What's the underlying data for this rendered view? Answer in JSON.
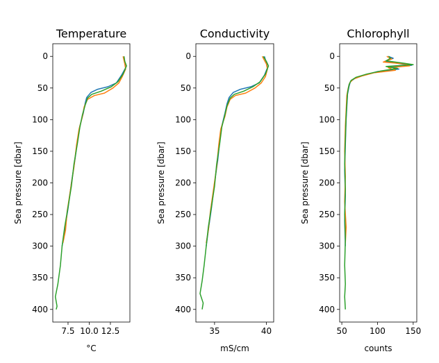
{
  "chart_data": [
    {
      "type": "line",
      "title": "Temperature",
      "xlabel": "°C",
      "ylabel": "Sea pressure [dbar]",
      "xlim": [
        5.7,
        14.8
      ],
      "ylim": [
        420,
        -20
      ],
      "y_inverted": true,
      "xticks": [
        7.5,
        10.0,
        12.5
      ],
      "xtick_labels": [
        "7.5",
        "10.0",
        "12.5"
      ],
      "yticks": [
        0,
        50,
        100,
        150,
        200,
        250,
        300,
        350,
        400
      ],
      "grid": false,
      "series": [
        {
          "color": "#1f77b4",
          "points": [
            [
              14.1,
              0
            ],
            [
              14.2,
              10
            ],
            [
              14.3,
              18
            ],
            [
              13.8,
              30
            ],
            [
              13.2,
              42
            ],
            [
              12.2,
              48
            ],
            [
              11.0,
              52
            ],
            [
              10.2,
              57
            ],
            [
              9.7,
              65
            ],
            [
              9.5,
              75
            ],
            [
              9.3,
              90
            ],
            [
              8.9,
              110
            ],
            [
              8.6,
              135
            ],
            [
              8.3,
              165
            ],
            [
              7.9,
              200
            ],
            [
              7.5,
              240
            ],
            [
              7.1,
              275
            ],
            [
              6.8,
              300
            ]
          ]
        },
        {
          "color": "#ff7f0e",
          "points": [
            [
              14.0,
              0
            ],
            [
              14.2,
              12
            ],
            [
              14.3,
              20
            ],
            [
              13.9,
              32
            ],
            [
              13.5,
              42
            ],
            [
              12.8,
              50
            ],
            [
              11.8,
              58
            ],
            [
              10.6,
              62
            ],
            [
              9.8,
              68
            ],
            [
              9.4,
              80
            ],
            [
              9.2,
              95
            ],
            [
              8.8,
              115
            ],
            [
              8.5,
              140
            ],
            [
              8.2,
              175
            ],
            [
              7.8,
              210
            ],
            [
              7.4,
              245
            ],
            [
              7.2,
              275
            ],
            [
              6.9,
              295
            ]
          ]
        },
        {
          "color": "#2ca02c",
          "points": [
            [
              14.1,
              0
            ],
            [
              14.2,
              8
            ],
            [
              14.4,
              15
            ],
            [
              14.0,
              28
            ],
            [
              13.4,
              40
            ],
            [
              12.6,
              48
            ],
            [
              11.4,
              55
            ],
            [
              10.3,
              60
            ],
            [
              9.8,
              66
            ],
            [
              9.5,
              78
            ],
            [
              9.2,
              92
            ],
            [
              8.9,
              112
            ],
            [
              8.6,
              138
            ],
            [
              8.2,
              170
            ],
            [
              7.9,
              205
            ],
            [
              7.5,
              238
            ],
            [
              7.1,
              270
            ],
            [
              6.8,
              300
            ],
            [
              6.6,
              330
            ],
            [
              6.3,
              360
            ],
            [
              6.0,
              380
            ],
            [
              6.2,
              395
            ],
            [
              6.1,
              400
            ]
          ]
        }
      ]
    },
    {
      "type": "line",
      "title": "Conductivity",
      "xlabel": "mS/cm",
      "ylabel": "Sea pressure [dbar]",
      "xlim": [
        33.2,
        40.7
      ],
      "ylim": [
        420,
        -20
      ],
      "y_inverted": true,
      "xticks": [
        35,
        40
      ],
      "xtick_labels": [
        "35",
        "40"
      ],
      "yticks": [
        0,
        50,
        100,
        150,
        200,
        250,
        300,
        350,
        400
      ],
      "grid": false,
      "series": [
        {
          "color": "#1f77b4",
          "points": [
            [
              39.8,
              0
            ],
            [
              40.0,
              10
            ],
            [
              40.1,
              18
            ],
            [
              39.8,
              30
            ],
            [
              39.3,
              42
            ],
            [
              38.5,
              48
            ],
            [
              37.5,
              52
            ],
            [
              36.8,
              57
            ],
            [
              36.4,
              65
            ],
            [
              36.2,
              75
            ],
            [
              36.0,
              90
            ],
            [
              35.7,
              110
            ],
            [
              35.5,
              135
            ],
            [
              35.3,
              165
            ],
            [
              35.0,
              200
            ],
            [
              34.7,
              240
            ],
            [
              34.4,
              275
            ],
            [
              34.2,
              300
            ]
          ]
        },
        {
          "color": "#ff7f0e",
          "points": [
            [
              39.6,
              0
            ],
            [
              40.0,
              12
            ],
            [
              40.1,
              20
            ],
            [
              39.9,
              32
            ],
            [
              39.5,
              42
            ],
            [
              38.9,
              50
            ],
            [
              38.0,
              58
            ],
            [
              37.0,
              62
            ],
            [
              36.5,
              68
            ],
            [
              36.2,
              80
            ],
            [
              36.0,
              95
            ],
            [
              35.6,
              115
            ],
            [
              35.4,
              140
            ],
            [
              35.2,
              175
            ],
            [
              34.9,
              210
            ],
            [
              34.6,
              245
            ],
            [
              34.4,
              275
            ],
            [
              34.2,
              295
            ]
          ]
        },
        {
          "color": "#2ca02c",
          "points": [
            [
              39.7,
              0
            ],
            [
              40.0,
              8
            ],
            [
              40.2,
              15
            ],
            [
              39.9,
              28
            ],
            [
              39.4,
              40
            ],
            [
              38.7,
              48
            ],
            [
              37.8,
              55
            ],
            [
              36.9,
              60
            ],
            [
              36.5,
              66
            ],
            [
              36.2,
              78
            ],
            [
              36.0,
              92
            ],
            [
              35.7,
              112
            ],
            [
              35.5,
              138
            ],
            [
              35.2,
              170
            ],
            [
              35.0,
              205
            ],
            [
              34.7,
              238
            ],
            [
              34.4,
              270
            ],
            [
              34.2,
              300
            ],
            [
              34.0,
              330
            ],
            [
              33.8,
              355
            ],
            [
              33.6,
              375
            ],
            [
              33.9,
              390
            ],
            [
              33.8,
              400
            ]
          ]
        }
      ]
    },
    {
      "type": "line",
      "title": "Chlorophyll",
      "xlabel": "counts",
      "ylabel": "Sea pressure [dbar]",
      "xlim": [
        47,
        155
      ],
      "ylim": [
        420,
        -20
      ],
      "y_inverted": true,
      "xticks": [
        50,
        100,
        150
      ],
      "xtick_labels": [
        "50",
        "100",
        "150"
      ],
      "yticks": [
        0,
        50,
        100,
        150,
        200,
        250,
        300,
        350,
        400
      ],
      "grid": false,
      "series": [
        {
          "color": "#1f77b4",
          "points": [
            [
              115,
              0
            ],
            [
              122,
              3
            ],
            [
              110,
              8
            ],
            [
              135,
              12
            ],
            [
              148,
              14
            ],
            [
              118,
              17
            ],
            [
              130,
              20
            ],
            [
              100,
              24
            ],
            [
              80,
              30
            ],
            [
              68,
              35
            ],
            [
              62,
              40
            ],
            [
              60,
              48
            ],
            [
              58,
              60
            ],
            [
              57,
              80
            ],
            [
              56,
              100
            ],
            [
              55,
              140
            ],
            [
              54,
              180
            ],
            [
              55,
              220
            ],
            [
              54,
              260
            ],
            [
              55,
              300
            ]
          ]
        },
        {
          "color": "#ff7f0e",
          "points": [
            [
              113,
              0
            ],
            [
              120,
              4
            ],
            [
              108,
              9
            ],
            [
              140,
              12
            ],
            [
              145,
              15
            ],
            [
              115,
              18
            ],
            [
              125,
              22
            ],
            [
              95,
              26
            ],
            [
              78,
              31
            ],
            [
              66,
              36
            ],
            [
              61,
              42
            ],
            [
              59,
              50
            ],
            [
              57,
              62
            ],
            [
              56,
              85
            ],
            [
              55,
              110
            ],
            [
              54,
              150
            ],
            [
              55,
              190
            ],
            [
              54,
              230
            ],
            [
              56,
              270
            ],
            [
              55,
              295
            ]
          ]
        },
        {
          "color": "#2ca02c",
          "points": [
            [
              116,
              0
            ],
            [
              118,
              3
            ],
            [
              112,
              7
            ],
            [
              138,
              11
            ],
            [
              150,
              13
            ],
            [
              112,
              16
            ],
            [
              128,
              19
            ],
            [
              105,
              23
            ],
            [
              85,
              28
            ],
            [
              70,
              33
            ],
            [
              63,
              38
            ],
            [
              60,
              45
            ],
            [
              58,
              58
            ],
            [
              57,
              75
            ],
            [
              56,
              95
            ],
            [
              55,
              130
            ],
            [
              54,
              170
            ],
            [
              55,
              210
            ],
            [
              54,
              250
            ],
            [
              55,
              290
            ],
            [
              54,
              330
            ],
            [
              55,
              360
            ],
            [
              54,
              380
            ],
            [
              55,
              400
            ]
          ]
        }
      ]
    }
  ]
}
